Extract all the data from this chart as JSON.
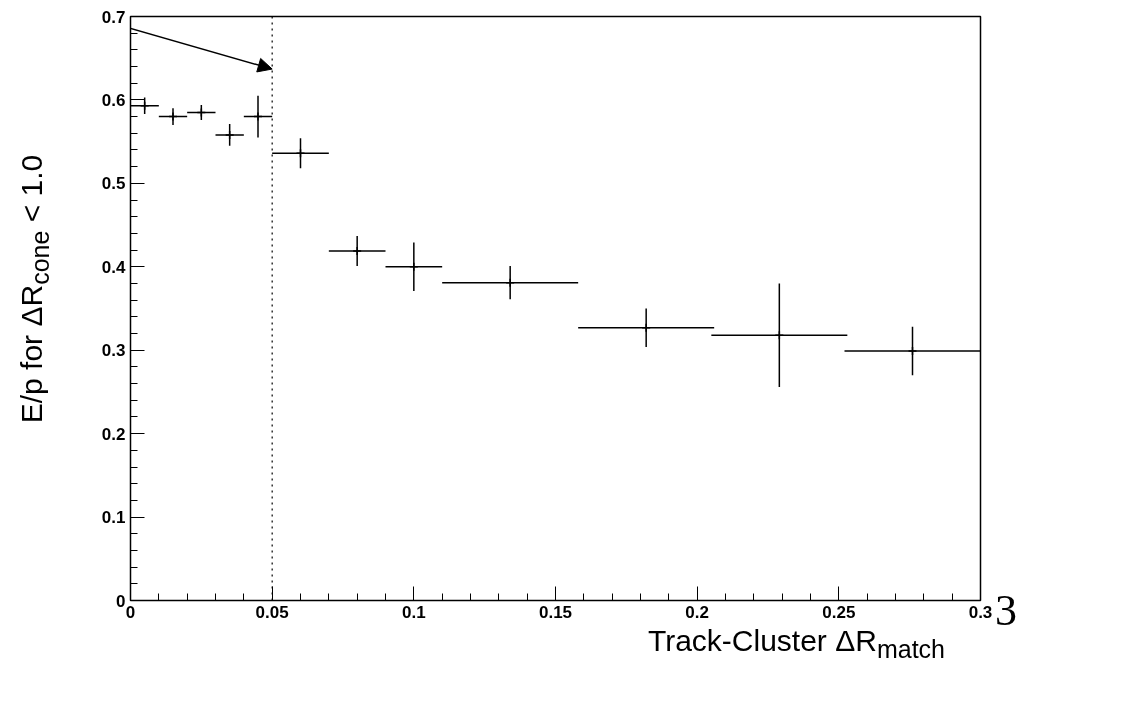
{
  "chart_data": {
    "type": "scatter",
    "xlabel": "Track-Cluster ΔR$_{match}$",
    "ylabel": "E/p for ΔR$_{cone}$ < 1.0",
    "x": [
      0.005,
      0.015,
      0.025,
      0.035,
      0.045,
      0.06,
      0.08,
      0.1,
      0.134,
      0.182,
      0.229,
      0.276
    ],
    "values": [
      0.593,
      0.58,
      0.585,
      0.558,
      0.58,
      0.536,
      0.419,
      0.4,
      0.381,
      0.327,
      0.318,
      0.299
    ],
    "errors": [
      0.01,
      0.01,
      0.009,
      0.013,
      0.025,
      0.018,
      0.018,
      0.029,
      0.02,
      0.023,
      0.062,
      0.029
    ],
    "xerrors": [
      0.005,
      0.005,
      0.005,
      0.005,
      0.005,
      0.01,
      0.01,
      0.01,
      0.024,
      0.024,
      0.024,
      0.024
    ],
    "color": "#000000",
    "marker": "cross",
    "xlim": [
      0,
      0.3
    ],
    "ylim": [
      0,
      0.7
    ],
    "xticks": [
      0,
      0.05,
      0.1,
      0.15,
      0.2,
      0.25,
      0.3
    ],
    "yticks": [
      0,
      0.1,
      0.2,
      0.3,
      0.4,
      0.5,
      0.6,
      0.7
    ],
    "ref_lines": [
      {
        "axis": "x",
        "value": 0.05,
        "line_style": "dotted",
        "color": "#000000"
      }
    ],
    "annotations": [
      "3"
    ],
    "grid": false
  }
}
